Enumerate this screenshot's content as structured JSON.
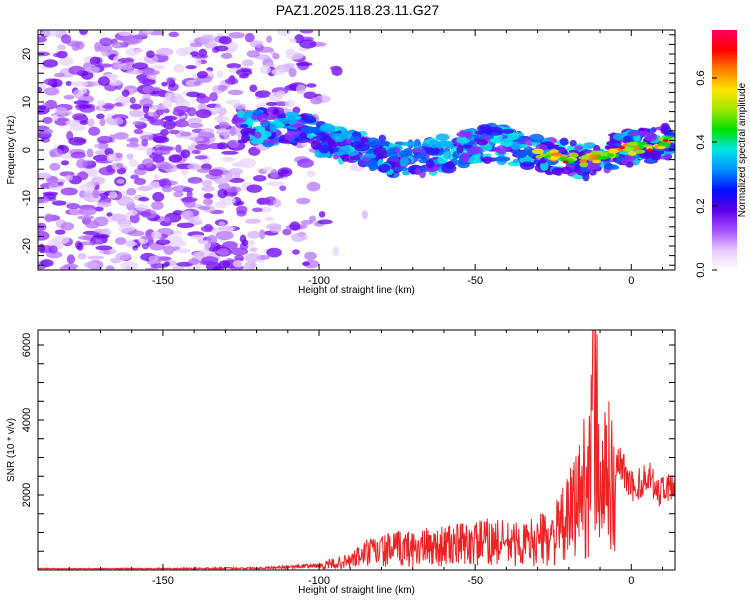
{
  "title": "PAZ1.2025.118.23.11.G27",
  "chart_data": [
    {
      "type": "heatmap",
      "xlabel": "Height of straight line (km)",
      "ylabel": "Frequency (Hz)",
      "xlim": [
        -190,
        14
      ],
      "ylim": [
        -25,
        25
      ],
      "xticks": [
        "-150",
        "-100",
        "-50",
        "0"
      ],
      "yticks": [
        "20",
        "10",
        "0",
        "-10",
        "-20"
      ],
      "colorbar": {
        "label": "Normalized spectral amplitude",
        "range": [
          0,
          0.75
        ],
        "ticks": [
          "0.0",
          "0.2",
          "0.4",
          "0.6"
        ],
        "colors": [
          "#ffffff",
          "#e6c8ff",
          "#a24cff",
          "#5a00e6",
          "#0010ff",
          "#0090ff",
          "#00e6e6",
          "#00e000",
          "#9ee600",
          "#ffe600",
          "#ff8000",
          "#ff0000",
          "#ff0060"
        ]
      },
      "ridge": {
        "x": [
          -125,
          -115,
          -105,
          -95,
          -85,
          -75,
          -65,
          -55,
          -45,
          -35,
          -25,
          -15,
          -5,
          5,
          12
        ],
        "y": [
          4.5,
          5,
          4,
          1.5,
          0,
          -2,
          -1.5,
          0,
          1.5,
          0,
          -1,
          -2.5,
          0,
          0.5,
          2
        ]
      },
      "grid": false
    },
    {
      "type": "line",
      "xlabel": "Height of straight line (km)",
      "ylabel": "SNR (10 * v/v)",
      "xlim": [
        -190,
        14
      ],
      "ylim": [
        0,
        6400
      ],
      "xticks": [
        "-150",
        "-100",
        "-50",
        "0"
      ],
      "yticks": [
        "2000",
        "4000",
        "6000"
      ],
      "color": "#ee2222",
      "envelope": {
        "x": [
          -190,
          -150,
          -120,
          -100,
          -90,
          -85,
          -75,
          -65,
          -55,
          -45,
          -35,
          -25,
          -20,
          -17,
          -13,
          -12,
          -10,
          -7,
          -3,
          0,
          3,
          6,
          9,
          11,
          14
        ],
        "y": [
          40,
          40,
          60,
          140,
          320,
          600,
          750,
          800,
          900,
          1000,
          900,
          1200,
          1800,
          2600,
          3500,
          6400,
          3000,
          3300,
          3000,
          2400,
          2500,
          2700,
          2200,
          2400,
          2400
        ]
      },
      "grid": false
    }
  ]
}
